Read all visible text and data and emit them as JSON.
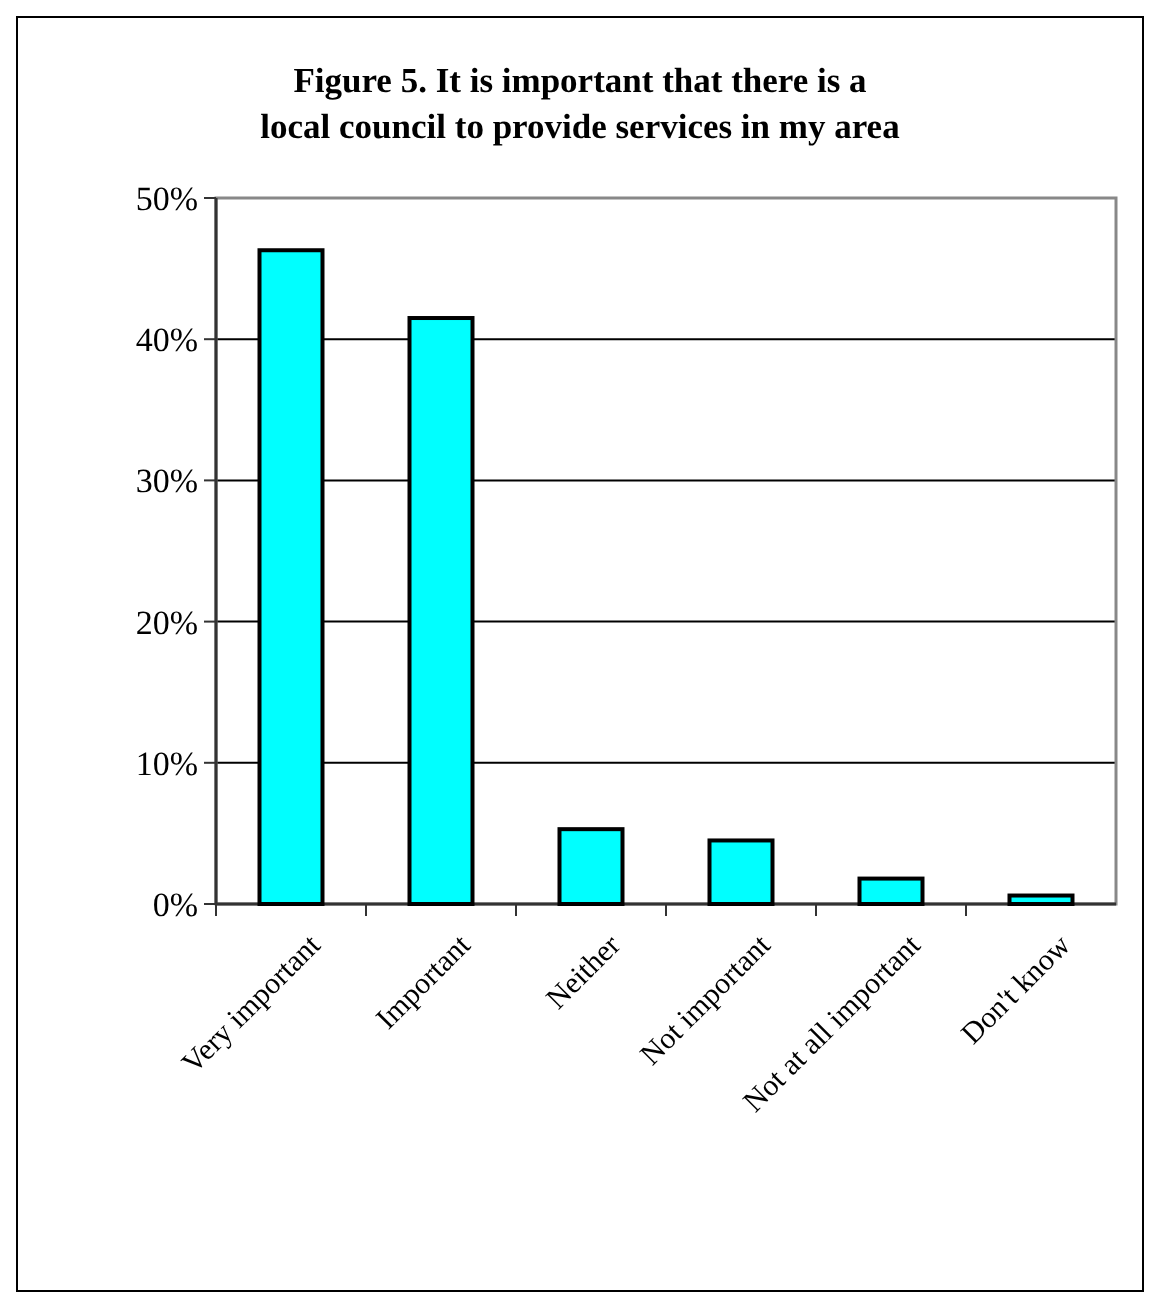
{
  "chart_data": {
    "type": "bar",
    "title": "Figure 5.  It is important that there is a local council to provide services in my area",
    "categories": [
      "Very important",
      "Important",
      "Neither",
      "Not important",
      "Not at all important",
      "Don't know"
    ],
    "values": [
      46.3,
      41.5,
      5.3,
      4.5,
      1.8,
      0.6
    ],
    "color": "#00ffff",
    "ylim": [
      0,
      50
    ],
    "yticks": [
      {
        "value": 0,
        "label": "0%"
      },
      {
        "value": 10,
        "label": "10%"
      },
      {
        "value": 20,
        "label": "20%"
      },
      {
        "value": 30,
        "label": "30%"
      },
      {
        "value": 40,
        "label": "40%"
      },
      {
        "value": 50,
        "label": "50%"
      }
    ],
    "grid": "y"
  }
}
